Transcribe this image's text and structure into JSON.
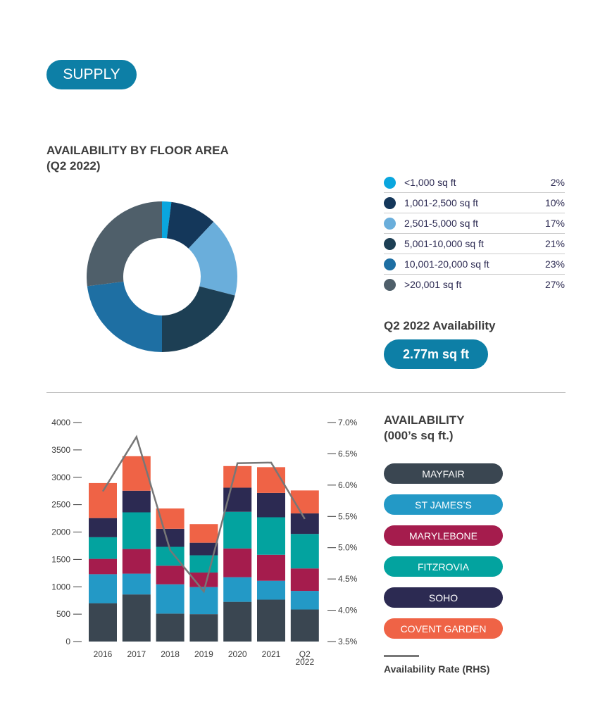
{
  "section_label": "SUPPLY",
  "donut": {
    "title_line1": "AVAILABILITY BY FLOOR AREA",
    "title_line2": "(Q2 2022)",
    "chart_data": {
      "type": "pie",
      "donut": true,
      "categories": [
        "<1,000 sq ft",
        "1,001-2,500 sq ft",
        "2,501-5,000 sq ft",
        "5,001-10,000 sq ft",
        "10,001-20,000 sq ft",
        ">20,001 sq ft"
      ],
      "values": [
        2,
        10,
        17,
        21,
        23,
        27
      ],
      "labels": [
        "2%",
        "10%",
        "17%",
        "21%",
        "23%",
        "27%"
      ],
      "colors": [
        "#0aa6de",
        "#14375a",
        "#6aaedb",
        "#1d3f54",
        "#1e6fa3",
        "#4f5f6a"
      ]
    }
  },
  "availability_summary": {
    "label": "Q2 2022 Availability",
    "value": "2.77m sq ft"
  },
  "bar_chart": {
    "title_line1": "AVAILABILITY",
    "title_line2": "(000’s sq ft.)",
    "rate_legend": "Availability Rate (RHS)",
    "chart_data": {
      "type": "bar",
      "stacked": true,
      "categories": [
        "2016",
        "2017",
        "2018",
        "2019",
        "2020",
        "2021",
        "Q2 2022"
      ],
      "category_labels": [
        [
          "2016"
        ],
        [
          "2017"
        ],
        [
          "2018"
        ],
        [
          "2019"
        ],
        [
          "2020"
        ],
        [
          "2021"
        ],
        [
          "Q2",
          "2022"
        ]
      ],
      "ylim": [
        0,
        4000
      ],
      "yticks": [
        "0",
        "500",
        "1000",
        "1500",
        "2000",
        "2500",
        "3000",
        "3500",
        "4000"
      ],
      "y2lim": [
        3.5,
        7.0
      ],
      "y2ticks": [
        "3.5%",
        "4.0%",
        "4.5%",
        "5.0%",
        "5.5%",
        "6.0%",
        "6.5%",
        "7.0%"
      ],
      "series": [
        {
          "name": "MAYFAIR",
          "color": "#3a4651",
          "values": [
            700,
            860,
            510,
            500,
            725,
            765,
            585
          ]
        },
        {
          "name": "ST JAMES’S",
          "color": "#2399c6",
          "values": [
            530,
            380,
            535,
            495,
            450,
            345,
            340
          ]
        },
        {
          "name": "MARYLEBONE",
          "color": "#a51c4d",
          "values": [
            280,
            450,
            340,
            265,
            525,
            475,
            410
          ]
        },
        {
          "name": "FITZROVIA",
          "color": "#03a39f",
          "values": [
            395,
            670,
            345,
            315,
            670,
            685,
            630
          ]
        },
        {
          "name": "SOHO",
          "color": "#2c2a52",
          "values": [
            350,
            395,
            330,
            230,
            440,
            445,
            375
          ]
        },
        {
          "name": "COVENT GARDEN",
          "color": "#ef6346",
          "values": [
            640,
            630,
            370,
            340,
            395,
            470,
            420
          ]
        }
      ],
      "line": {
        "name": "Availability Rate (RHS)",
        "color": "#777777",
        "axis": "right",
        "values": [
          5.9,
          6.77,
          4.96,
          4.3,
          6.35,
          6.36,
          5.46
        ]
      }
    }
  }
}
